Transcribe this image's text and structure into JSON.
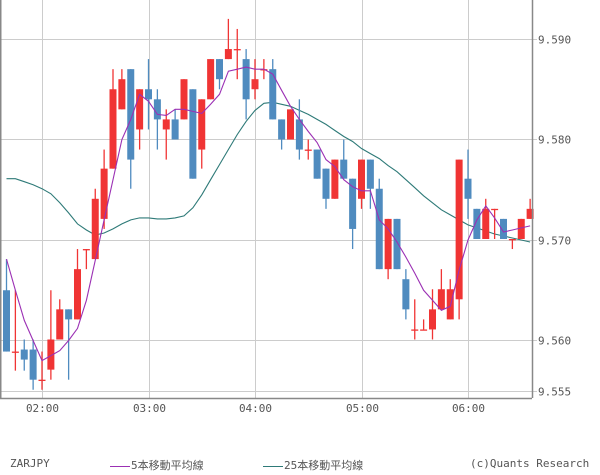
{
  "symbol": "ZARJPY",
  "credit": "(c)Quants Research",
  "legend": [
    {
      "label": "5本移動平均線",
      "color": "#9b30b4"
    },
    {
      "label": "25本移動平均線",
      "color": "#2e7a78"
    }
  ],
  "colors": {
    "up": "#f03434",
    "down": "#4f8bbf",
    "grid": "#cccccc",
    "axis": "#888888"
  },
  "chart_data": {
    "type": "candlestick",
    "title": "ZARJPY",
    "xlabel": "",
    "ylabel": "",
    "x_ticks": [
      "02:00",
      "03:00",
      "04:00",
      "05:00",
      "06:00"
    ],
    "y_ticks": [
      "9.590",
      "9.580",
      "9.570",
      "9.560",
      "9.555"
    ],
    "ylim": [
      9.554,
      9.5928
    ],
    "grid": true,
    "legend_position": "bottom",
    "series": [
      {
        "name": "5本移動平均線",
        "type": "line"
      },
      {
        "name": "25本移動平均線",
        "type": "line"
      }
    ],
    "candles": [
      {
        "o": 9.565,
        "h": 9.5681,
        "l": 9.5589,
        "c": 9.5589
      },
      {
        "o": 9.5589,
        "h": 9.565,
        "l": 9.557,
        "c": 9.5589
      },
      {
        "o": 9.5591,
        "h": 9.5601,
        "l": 9.557,
        "c": 9.5581
      },
      {
        "o": 9.5591,
        "h": 9.5601,
        "l": 9.5551,
        "c": 9.5561
      },
      {
        "o": 9.5561,
        "h": 9.5589,
        "l": 9.5551,
        "c": 9.5561
      },
      {
        "o": 9.5571,
        "h": 9.565,
        "l": 9.5561,
        "c": 9.5601
      },
      {
        "o": 9.5601,
        "h": 9.5641,
        "l": 9.5601,
        "c": 9.5631
      },
      {
        "o": 9.5631,
        "h": 9.5631,
        "l": 9.5561,
        "c": 9.5621
      },
      {
        "o": 9.5621,
        "h": 9.5691,
        "l": 9.5621,
        "c": 9.5671
      },
      {
        "o": 9.5691,
        "h": 9.5691,
        "l": 9.5671,
        "c": 9.5691
      },
      {
        "o": 9.5681,
        "h": 9.5751,
        "l": 9.5681,
        "c": 9.5741
      },
      {
        "o": 9.5721,
        "h": 9.579,
        "l": 9.5711,
        "c": 9.5771
      },
      {
        "o": 9.5771,
        "h": 9.587,
        "l": 9.5771,
        "c": 9.585
      },
      {
        "o": 9.583,
        "h": 9.587,
        "l": 9.583,
        "c": 9.586
      },
      {
        "o": 9.587,
        "h": 9.587,
        "l": 9.5751,
        "c": 9.578
      },
      {
        "o": 9.581,
        "h": 9.585,
        "l": 9.579,
        "c": 9.585
      },
      {
        "o": 9.585,
        "h": 9.588,
        "l": 9.581,
        "c": 9.584
      },
      {
        "o": 9.584,
        "h": 9.585,
        "l": 9.579,
        "c": 9.582
      },
      {
        "o": 9.581,
        "h": 9.583,
        "l": 9.578,
        "c": 9.582
      },
      {
        "o": 9.582,
        "h": 9.583,
        "l": 9.58,
        "c": 9.58
      },
      {
        "o": 9.582,
        "h": 9.586,
        "l": 9.582,
        "c": 9.586
      },
      {
        "o": 9.585,
        "h": 9.585,
        "l": 9.5761,
        "c": 9.5761
      },
      {
        "o": 9.579,
        "h": 9.584,
        "l": 9.5771,
        "c": 9.584
      },
      {
        "o": 9.584,
        "h": 9.588,
        "l": 9.584,
        "c": 9.588
      },
      {
        "o": 9.588,
        "h": 9.588,
        "l": 9.585,
        "c": 9.586
      },
      {
        "o": 9.588,
        "h": 9.592,
        "l": 9.588,
        "c": 9.589
      },
      {
        "o": 9.589,
        "h": 9.591,
        "l": 9.586,
        "c": 9.589
      },
      {
        "o": 9.588,
        "h": 9.589,
        "l": 9.582,
        "c": 9.584
      },
      {
        "o": 9.585,
        "h": 9.588,
        "l": 9.584,
        "c": 9.586
      },
      {
        "o": 9.587,
        "h": 9.588,
        "l": 9.586,
        "c": 9.587
      },
      {
        "o": 9.587,
        "h": 9.588,
        "l": 9.582,
        "c": 9.582
      },
      {
        "o": 9.582,
        "h": 9.582,
        "l": 9.579,
        "c": 9.58
      },
      {
        "o": 9.58,
        "h": 9.583,
        "l": 9.58,
        "c": 9.583
      },
      {
        "o": 9.582,
        "h": 9.584,
        "l": 9.578,
        "c": 9.579
      },
      {
        "o": 9.579,
        "h": 9.58,
        "l": 9.578,
        "c": 9.579
      },
      {
        "o": 9.579,
        "h": 9.579,
        "l": 9.5761,
        "c": 9.5761
      },
      {
        "o": 9.5771,
        "h": 9.5771,
        "l": 9.5731,
        "c": 9.5741
      },
      {
        "o": 9.5741,
        "h": 9.578,
        "l": 9.5741,
        "c": 9.578
      },
      {
        "o": 9.578,
        "h": 9.58,
        "l": 9.5761,
        "c": 9.5761
      },
      {
        "o": 9.5761,
        "h": 9.5761,
        "l": 9.5691,
        "c": 9.5711
      },
      {
        "o": 9.5741,
        "h": 9.578,
        "l": 9.5731,
        "c": 9.578
      },
      {
        "o": 9.578,
        "h": 9.578,
        "l": 9.5731,
        "c": 9.5751
      },
      {
        "o": 9.5751,
        "h": 9.5761,
        "l": 9.5671,
        "c": 9.5671
      },
      {
        "o": 9.5671,
        "h": 9.5721,
        "l": 9.5661,
        "c": 9.5721
      },
      {
        "o": 9.5721,
        "h": 9.5721,
        "l": 9.5671,
        "c": 9.5671
      },
      {
        "o": 9.5661,
        "h": 9.5671,
        "l": 9.5621,
        "c": 9.5631
      },
      {
        "o": 9.5611,
        "h": 9.5641,
        "l": 9.5601,
        "c": 9.5611
      },
      {
        "o": 9.5611,
        "h": 9.5621,
        "l": 9.5611,
        "c": 9.5611
      },
      {
        "o": 9.5611,
        "h": 9.5651,
        "l": 9.5601,
        "c": 9.5631
      },
      {
        "o": 9.5631,
        "h": 9.5671,
        "l": 9.5631,
        "c": 9.5651
      },
      {
        "o": 9.5621,
        "h": 9.5661,
        "l": 9.5621,
        "c": 9.5651
      },
      {
        "o": 9.5641,
        "h": 9.578,
        "l": 9.5621,
        "c": 9.578
      },
      {
        "o": 9.5761,
        "h": 9.579,
        "l": 9.5721,
        "c": 9.5741
      },
      {
        "o": 9.5731,
        "h": 9.5731,
        "l": 9.5701,
        "c": 9.5701
      },
      {
        "o": 9.5701,
        "h": 9.5741,
        "l": 9.5701,
        "c": 9.5731
      },
      {
        "o": 9.5731,
        "h": 9.5731,
        "l": 9.5701,
        "c": 9.5731
      },
      {
        "o": 9.5721,
        "h": 9.5721,
        "l": 9.5701,
        "c": 9.5701
      },
      {
        "o": 9.5701,
        "h": 9.5701,
        "l": 9.5691,
        "c": 9.5701
      },
      {
        "o": 9.5701,
        "h": 9.5721,
        "l": 9.5701,
        "c": 9.5721
      },
      {
        "o": 9.5721,
        "h": 9.5741,
        "l": 9.5721,
        "c": 9.5731
      }
    ],
    "ma5": [
      9.5681,
      9.565,
      9.562,
      9.56,
      9.558,
      9.5585,
      9.559,
      9.56,
      9.5612,
      9.564,
      9.568,
      9.572,
      9.576,
      9.58,
      9.582,
      9.5845,
      9.5838,
      9.5825,
      9.5824,
      9.583,
      9.583,
      9.5828,
      9.5826,
      9.5835,
      9.5845,
      9.5868,
      9.587,
      9.5872,
      9.587,
      9.587,
      9.5865,
      9.5849,
      9.5833,
      9.582,
      9.5808,
      9.5797,
      9.578,
      9.5773,
      9.576,
      9.5753,
      9.5749,
      9.5749,
      9.572,
      9.5711,
      9.5698,
      9.5683,
      9.5667,
      9.565,
      9.564,
      9.563,
      9.5634,
      9.567,
      9.57,
      9.572,
      9.5734,
      9.5722,
      9.5708,
      9.571,
      9.5712,
      9.5714
    ],
    "ma25": [
      9.5761,
      9.5761,
      9.5758,
      9.5755,
      9.5751,
      9.5746,
      9.5737,
      9.5727,
      9.5716,
      9.571,
      9.5705,
      9.5707,
      9.5711,
      9.5716,
      9.572,
      9.5722,
      9.5722,
      9.5721,
      9.5721,
      9.5722,
      9.5724,
      9.5732,
      9.5745,
      9.576,
      9.5775,
      9.579,
      9.5805,
      9.5818,
      9.5829,
      9.5836,
      9.5837,
      9.5835,
      9.5833,
      9.5829,
      9.5825,
      9.582,
      9.5815,
      9.5809,
      9.5803,
      9.5798,
      9.5791,
      9.5786,
      9.5781,
      9.5774,
      9.5768,
      9.576,
      9.5752,
      9.5744,
      9.5737,
      9.573,
      9.5725,
      9.572,
      9.5715,
      9.5712,
      9.5709,
      9.5706,
      9.5704,
      9.5702,
      9.57,
      9.5698
    ]
  }
}
